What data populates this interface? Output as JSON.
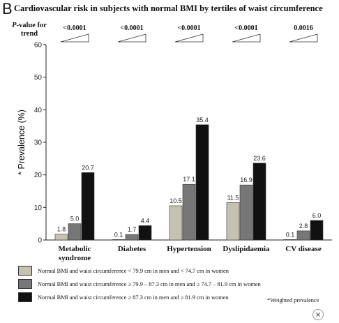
{
  "panel_letter": "B",
  "chart_data": {
    "type": "bar",
    "title": "Cardiovascular risk in subjects with normal BMI by tertiles of waist circumference",
    "ylabel": "* Prevalence (%)",
    "ylim": [
      0,
      60
    ],
    "yticks": [
      0,
      10,
      20,
      30,
      40,
      50,
      60
    ],
    "grid": false,
    "categories": [
      "Metabolic syndrome",
      "Diabetes",
      "Hypertension",
      "Dyslipidaemia",
      "CV disease"
    ],
    "category_lines": [
      [
        "Metabolic",
        "syndrome"
      ],
      [
        "Diabetes"
      ],
      [
        "Hypertension"
      ],
      [
        "Dyslipidaemia"
      ],
      [
        "CV disease"
      ]
    ],
    "series": [
      {
        "name": "Normal BMI and waist circumference < 79.9 cm in men and < 74.7 cm in women",
        "color": "#c5c2b2",
        "values": [
          1.8,
          0.1,
          10.5,
          11.5,
          0.1
        ]
      },
      {
        "name": "Normal BMI and waist circumference ≥ 79.9 – 87.3 cm in men and ≥ 74.7 – 81.9 cm in women",
        "color": "#777777",
        "values": [
          5.0,
          1.7,
          17.1,
          16.9,
          2.8
        ]
      },
      {
        "name": "Normal BMI and waist circumference ≥ 87.3 cm in men and ≥ 81.9 cm in women",
        "color": "#111111",
        "values": [
          20.7,
          4.4,
          35.4,
          23.6,
          6.0
        ]
      }
    ],
    "value_labels": [
      [
        "1.8",
        "0.1",
        "10.5",
        "11.5",
        "0.1"
      ],
      [
        "5.0",
        "1.7",
        "17.1",
        "16.9",
        "2.8"
      ],
      [
        "20.7",
        "4.4",
        "35.4",
        "23.6",
        "6.0"
      ]
    ],
    "p_value_title": "-value for trend",
    "p_value_letter": "P",
    "p_values": [
      "<0.0001",
      "<0.0001",
      "<0.0001",
      "<0.0001",
      "0.0016"
    ],
    "legend_placement": "bottom",
    "footnote": "*Weighted prevalence"
  },
  "close_label": "×"
}
